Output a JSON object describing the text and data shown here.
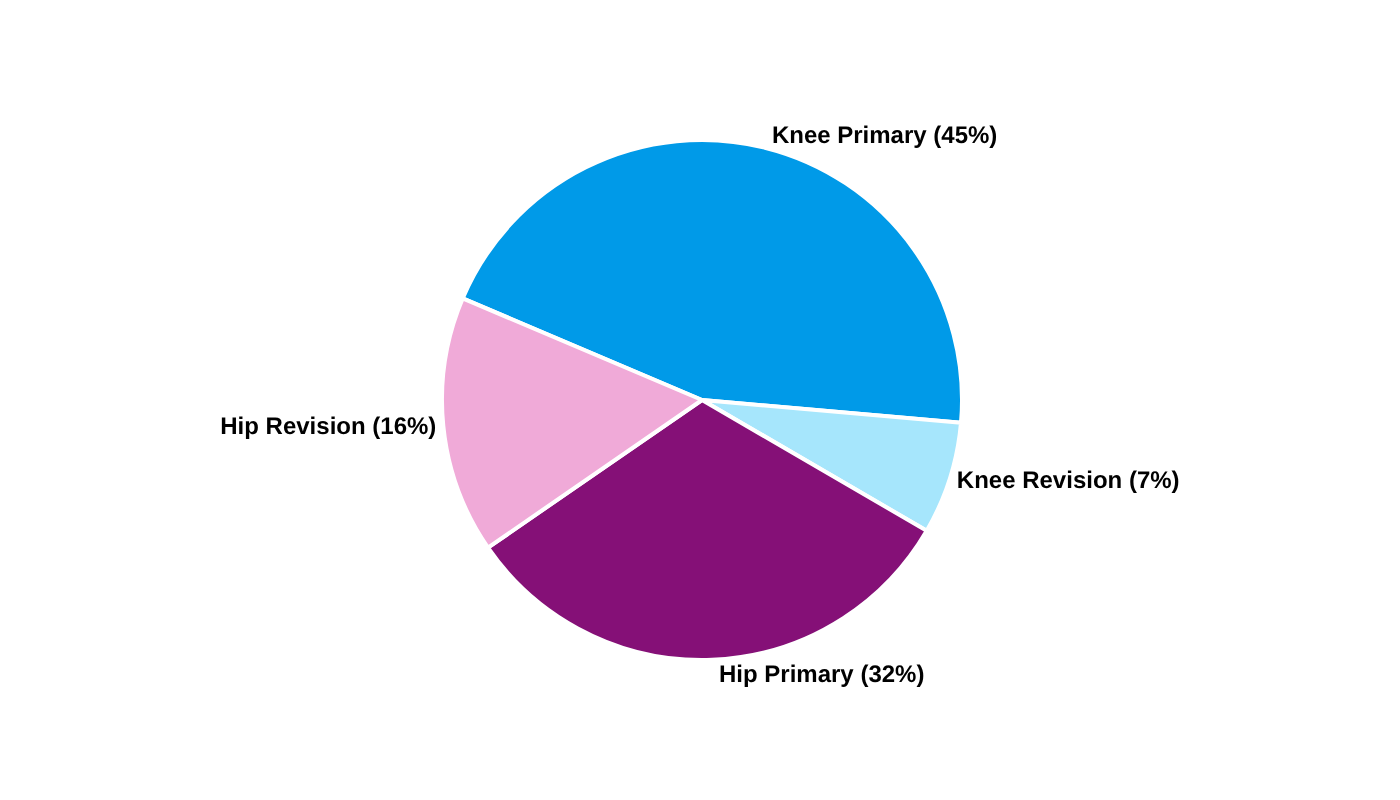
{
  "chart_data": {
    "type": "pie",
    "categories": [
      "Knee Primary",
      "Knee Revision",
      "Hip Primary",
      "Hip Revision"
    ],
    "values": [
      45,
      7,
      32,
      16
    ],
    "value_labels": [
      "(45%)",
      "(7%)",
      "(32%)",
      "(16%)"
    ],
    "colors": [
      "#009ae8",
      "#a6e6fc",
      "#851077",
      "#f0aad8"
    ],
    "legend": false
  }
}
